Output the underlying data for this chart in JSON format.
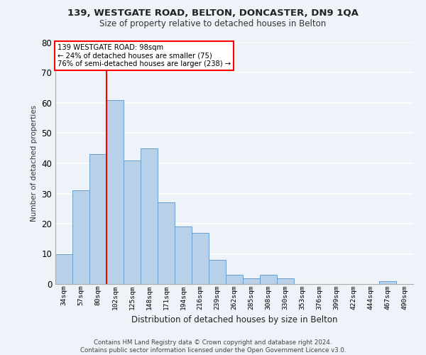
{
  "title1": "139, WESTGATE ROAD, BELTON, DONCASTER, DN9 1QA",
  "title2": "Size of property relative to detached houses in Belton",
  "xlabel": "Distribution of detached houses by size in Belton",
  "ylabel": "Number of detached properties",
  "categories": [
    "34sqm",
    "57sqm",
    "80sqm",
    "102sqm",
    "125sqm",
    "148sqm",
    "171sqm",
    "194sqm",
    "216sqm",
    "239sqm",
    "262sqm",
    "285sqm",
    "308sqm",
    "330sqm",
    "353sqm",
    "376sqm",
    "399sqm",
    "422sqm",
    "444sqm",
    "467sqm",
    "490sqm"
  ],
  "values": [
    10,
    31,
    43,
    61,
    41,
    45,
    27,
    19,
    17,
    8,
    3,
    2,
    3,
    2,
    0,
    0,
    0,
    0,
    0,
    1,
    0
  ],
  "bar_color": "#b8d0e8",
  "bar_edge_color": "#6aa0cc",
  "background_color": "#eef2f9",
  "grid_color": "#ffffff",
  "ylim": [
    0,
    80
  ],
  "yticks": [
    0,
    10,
    20,
    30,
    40,
    50,
    60,
    70,
    80
  ],
  "property_line_x": 3.0,
  "annotation_box_text": "139 WESTGATE ROAD: 98sqm\n← 24% of detached houses are smaller (75)\n76% of semi-detached houses are larger (238) →",
  "annotation_box_color": "#ffffff",
  "annotation_box_edgecolor": "red",
  "footer": "Contains HM Land Registry data © Crown copyright and database right 2024.\nContains public sector information licensed under the Open Government Licence v3.0."
}
